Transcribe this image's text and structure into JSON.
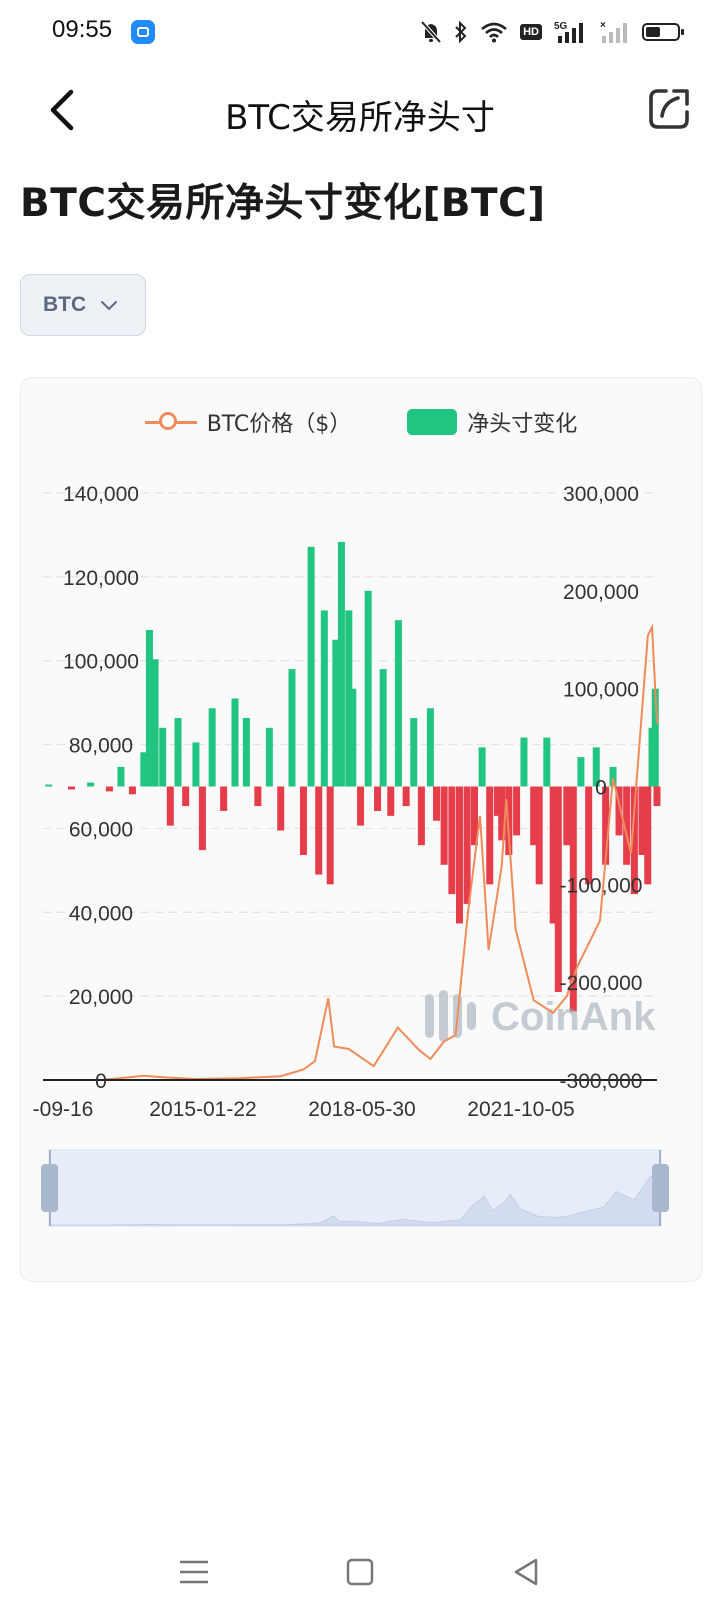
{
  "status": {
    "time": "09:55",
    "network": "5G"
  },
  "nav": {
    "title": "BTC交易所净头寸"
  },
  "heading": "BTC交易所净头寸变化[BTC]",
  "selector": {
    "value": "BTC"
  },
  "legend": {
    "price": "BTC价格（$）",
    "netflow": "净头寸变化"
  },
  "watermark": "CoinAnk",
  "colors": {
    "price": "#f08c5b",
    "positive": "#22c481",
    "negative": "#e63d4a",
    "accent": "#1f8bff"
  },
  "chart_data": {
    "type": "bar",
    "x_tick_labels": [
      "-09-16",
      "2015-01-22",
      "2018-05-30",
      "2021-10-05"
    ],
    "x_range": [
      "2011-09-16",
      "2025-03-01"
    ],
    "y_left": {
      "label": "BTC价格（$）",
      "ylim": [
        0,
        140000
      ],
      "ticks": [
        "0",
        "20,000",
        "40,000",
        "60,000",
        "80,000",
        "100,000",
        "120,000",
        "140,000"
      ]
    },
    "y_right": {
      "label": "净头寸变化",
      "ylim": [
        -300000,
        300000
      ],
      "ticks": [
        "-300,000",
        "-200,000",
        "-100,000",
        "0",
        "100,000",
        "200,000",
        "300,000"
      ]
    },
    "series": [
      {
        "name": "BTC价格（$）",
        "kind": "line",
        "points": [
          [
            "2011-09-16",
            5
          ],
          [
            "2012-06-01",
            6
          ],
          [
            "2013-01-01",
            13
          ],
          [
            "2013-12-01",
            1000
          ],
          [
            "2014-06-01",
            600
          ],
          [
            "2015-01-22",
            230
          ],
          [
            "2016-01-01",
            430
          ],
          [
            "2016-12-01",
            900
          ],
          [
            "2017-06-01",
            2500
          ],
          [
            "2017-09-01",
            4500
          ],
          [
            "2017-12-17",
            19500
          ],
          [
            "2018-02-01",
            8000
          ],
          [
            "2018-05-30",
            7400
          ],
          [
            "2018-12-15",
            3300
          ],
          [
            "2019-06-26",
            12500
          ],
          [
            "2019-12-15",
            7100
          ],
          [
            "2020-03-13",
            5000
          ],
          [
            "2020-07-01",
            9200
          ],
          [
            "2020-10-01",
            10700
          ],
          [
            "2021-01-08",
            40000
          ],
          [
            "2021-04-14",
            63000
          ],
          [
            "2021-06-22",
            31000
          ],
          [
            "2021-10-05",
            51000
          ],
          [
            "2021-11-10",
            67000
          ],
          [
            "2022-01-24",
            36000
          ],
          [
            "2022-06-18",
            19000
          ],
          [
            "2022-11-21",
            16000
          ],
          [
            "2023-03-10",
            20000
          ],
          [
            "2023-06-01",
            27000
          ],
          [
            "2023-12-01",
            38000
          ],
          [
            "2024-03-14",
            72000
          ],
          [
            "2024-08-05",
            54000
          ],
          [
            "2024-12-17",
            106000
          ],
          [
            "2025-01-20",
            108000
          ],
          [
            "2025-03-01",
            85000
          ]
        ]
      },
      {
        "name": "净头寸变化",
        "kind": "bar",
        "points": [
          [
            "2011-11-01",
            2000
          ],
          [
            "2012-05-01",
            -3000
          ],
          [
            "2012-10-01",
            4000
          ],
          [
            "2013-03-01",
            -5000
          ],
          [
            "2013-06-01",
            20000
          ],
          [
            "2013-09-01",
            -8000
          ],
          [
            "2013-12-01",
            35000
          ],
          [
            "2014-01-15",
            160000
          ],
          [
            "2014-03-01",
            130000
          ],
          [
            "2014-05-01",
            60000
          ],
          [
            "2014-07-01",
            -40000
          ],
          [
            "2014-09-01",
            70000
          ],
          [
            "2014-11-01",
            -20000
          ],
          [
            "2015-01-22",
            45000
          ],
          [
            "2015-03-15",
            -65000
          ],
          [
            "2015-06-01",
            80000
          ],
          [
            "2015-09-01",
            -25000
          ],
          [
            "2015-12-01",
            90000
          ],
          [
            "2016-03-01",
            70000
          ],
          [
            "2016-06-01",
            -20000
          ],
          [
            "2016-09-01",
            60000
          ],
          [
            "2016-12-01",
            -45000
          ],
          [
            "2017-03-01",
            120000
          ],
          [
            "2017-06-01",
            -70000
          ],
          [
            "2017-08-01",
            245000
          ],
          [
            "2017-10-01",
            -90000
          ],
          [
            "2017-11-15",
            180000
          ],
          [
            "2018-01-01",
            -100000
          ],
          [
            "2018-02-15",
            150000
          ],
          [
            "2018-04-01",
            250000
          ],
          [
            "2018-05-30",
            180000
          ],
          [
            "2018-07-01",
            100000
          ],
          [
            "2018-09-01",
            -40000
          ],
          [
            "2018-11-01",
            200000
          ],
          [
            "2019-01-15",
            -25000
          ],
          [
            "2019-03-01",
            120000
          ],
          [
            "2019-05-01",
            -30000
          ],
          [
            "2019-07-01",
            170000
          ],
          [
            "2019-09-01",
            -20000
          ],
          [
            "2019-11-01",
            70000
          ],
          [
            "2020-01-01",
            -60000
          ],
          [
            "2020-03-13",
            80000
          ],
          [
            "2020-05-01",
            -35000
          ],
          [
            "2020-07-01",
            -80000
          ],
          [
            "2020-09-01",
            -110000
          ],
          [
            "2020-11-01",
            -140000
          ],
          [
            "2021-01-01",
            -120000
          ],
          [
            "2021-03-01",
            -60000
          ],
          [
            "2021-05-01",
            40000
          ],
          [
            "2021-07-01",
            -100000
          ],
          [
            "2021-09-01",
            -30000
          ],
          [
            "2021-10-05",
            -55000
          ],
          [
            "2021-12-01",
            -70000
          ],
          [
            "2022-02-01",
            -50000
          ],
          [
            "2022-04-01",
            50000
          ],
          [
            "2022-06-18",
            -60000
          ],
          [
            "2022-08-01",
            -100000
          ],
          [
            "2022-10-01",
            50000
          ],
          [
            "2022-11-21",
            -140000
          ],
          [
            "2023-01-01",
            -210000
          ],
          [
            "2023-03-10",
            -60000
          ],
          [
            "2023-05-01",
            -230000
          ],
          [
            "2023-07-01",
            30000
          ],
          [
            "2023-09-01",
            -100000
          ],
          [
            "2023-11-01",
            40000
          ],
          [
            "2024-01-15",
            -80000
          ],
          [
            "2024-03-14",
            20000
          ],
          [
            "2024-05-01",
            -50000
          ],
          [
            "2024-07-01",
            -80000
          ],
          [
            "2024-09-01",
            -110000
          ],
          [
            "2024-11-01",
            -70000
          ],
          [
            "2024-12-17",
            -100000
          ],
          [
            "2025-01-20",
            60000
          ],
          [
            "2025-02-15",
            100000
          ],
          [
            "2025-03-01",
            -20000
          ]
        ]
      }
    ],
    "legend_position": "top",
    "grid": true,
    "data_zoom": {
      "start": 0,
      "end": 100
    }
  }
}
